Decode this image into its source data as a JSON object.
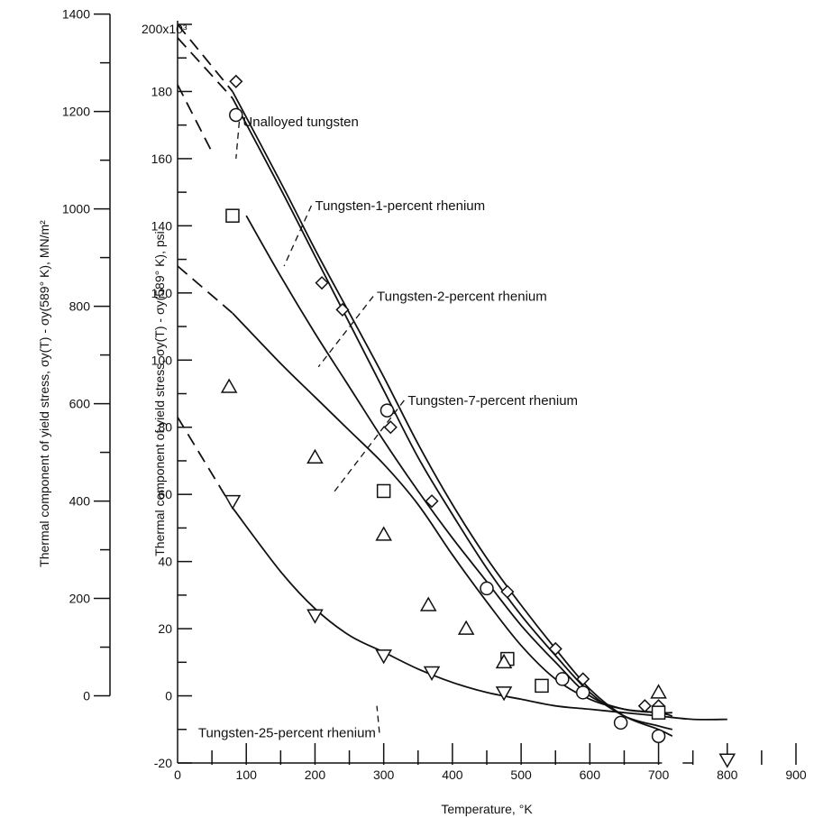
{
  "chart_data": {
    "type": "scatter",
    "title": "",
    "xlabel": "Temperature, °K",
    "ylabel": "Thermal component of yield stress, σy(T) - σy(589° K), psi",
    "ylabel_secondary": "Thermal component of yield stress, σy(T) - σy(589° K), MN/m²",
    "x_ticks": [
      "0",
      "100",
      "200",
      "300",
      "400",
      "500",
      "600",
      "700",
      "800",
      "900"
    ],
    "y_ticks": [
      "-20",
      "0",
      "20",
      "40",
      "60",
      "80",
      "100",
      "120",
      "140",
      "160",
      "180",
      "200x10³"
    ],
    "y2_ticks": [
      "0",
      "200",
      "400",
      "600",
      "800",
      "1000",
      "1200",
      "1400"
    ],
    "xlim": [
      0,
      900
    ],
    "ylim": [
      -20,
      200
    ],
    "y_multiplier": "x10³",
    "grid": false,
    "series": [
      {
        "name": "Unalloyed tungsten",
        "marker": "diamond",
        "label_xy": [
          95,
          171
        ],
        "leader_to": [
          85,
          160
        ],
        "points": [
          [
            85,
            183
          ],
          [
            210,
            123
          ],
          [
            240,
            115
          ],
          [
            310,
            80
          ],
          [
            370,
            58
          ],
          [
            480,
            31
          ],
          [
            550,
            14
          ],
          [
            590,
            5
          ],
          [
            680,
            -3
          ],
          [
            700,
            -3
          ]
        ],
        "curve": [
          [
            0,
            200
          ],
          [
            80,
            180
          ],
          [
            150,
            153
          ],
          [
            200,
            133
          ],
          [
            250,
            114
          ],
          [
            300,
            95
          ],
          [
            350,
            75
          ],
          [
            400,
            57
          ],
          [
            450,
            41
          ],
          [
            500,
            27
          ],
          [
            550,
            14
          ],
          [
            600,
            2
          ],
          [
            650,
            -6
          ],
          [
            700,
            -10
          ],
          [
            720,
            -12
          ]
        ],
        "curve_dashed_to_x": 80
      },
      {
        "name": "Tungsten-1-percent rhenium",
        "marker": "circle",
        "label_xy": [
          200,
          146
        ],
        "leader_to": [
          155,
          128
        ],
        "points": [
          [
            85,
            173
          ],
          [
            305,
            85
          ],
          [
            450,
            32
          ],
          [
            560,
            5
          ],
          [
            590,
            1
          ],
          [
            645,
            -8
          ],
          [
            700,
            -12
          ]
        ],
        "curve": [
          [
            0,
            196
          ],
          [
            80,
            178
          ],
          [
            150,
            151
          ],
          [
            200,
            131
          ],
          [
            250,
            111
          ],
          [
            300,
            91
          ],
          [
            350,
            71
          ],
          [
            400,
            54
          ],
          [
            450,
            38
          ],
          [
            500,
            24
          ],
          [
            550,
            12
          ],
          [
            600,
            1
          ],
          [
            650,
            -6
          ],
          [
            700,
            -9
          ],
          [
            720,
            -10
          ]
        ],
        "curve_dashed_to_x": 80
      },
      {
        "name": "Tungsten-2-percent rhenium",
        "marker": "square",
        "label_xy": [
          290,
          119
        ],
        "leader_to": [
          205,
          98
        ],
        "points": [
          [
            80,
            143
          ],
          [
            300,
            61
          ],
          [
            480,
            11
          ],
          [
            530,
            3
          ],
          [
            700,
            -5
          ]
        ],
        "curve": [
          [
            0,
            182
          ],
          [
            50,
            162
          ],
          [
            100,
            143
          ],
          [
            150,
            125
          ],
          [
            200,
            108
          ],
          [
            250,
            92
          ],
          [
            300,
            76
          ],
          [
            350,
            61
          ],
          [
            400,
            47
          ],
          [
            450,
            34
          ],
          [
            500,
            21
          ],
          [
            550,
            10
          ],
          [
            600,
            0
          ],
          [
            650,
            -4
          ],
          [
            700,
            -5
          ],
          [
            720,
            -5
          ]
        ],
        "curve_dashed_to_x": 80
      },
      {
        "name": "Tungsten-7-percent rhenium",
        "marker": "triangle-up",
        "label_xy": [
          335,
          88
        ],
        "leader_to": [
          225,
          60
        ],
        "points": [
          [
            75,
            92
          ],
          [
            200,
            71
          ],
          [
            300,
            48
          ],
          [
            365,
            27
          ],
          [
            420,
            20
          ],
          [
            475,
            10
          ],
          [
            700,
            1
          ]
        ],
        "curve": [
          [
            0,
            128
          ],
          [
            80,
            114
          ],
          [
            150,
            99
          ],
          [
            200,
            89
          ],
          [
            250,
            79
          ],
          [
            300,
            69
          ],
          [
            350,
            57
          ],
          [
            400,
            42
          ],
          [
            450,
            28
          ],
          [
            500,
            15
          ],
          [
            550,
            5
          ],
          [
            600,
            -1
          ],
          [
            650,
            -4
          ],
          [
            700,
            -5
          ],
          [
            720,
            -6
          ]
        ],
        "curve_dashed_to_x": 80
      },
      {
        "name": "Tungsten-25-percent rhenium",
        "marker": "triangle-down",
        "label_xy": [
          30,
          -11
        ],
        "leader_to": [
          290,
          -3
        ],
        "points": [
          [
            80,
            58
          ],
          [
            200,
            24
          ],
          [
            300,
            12
          ],
          [
            370,
            7
          ],
          [
            475,
            1
          ],
          [
            800,
            -19
          ]
        ],
        "curve": [
          [
            0,
            83
          ],
          [
            80,
            56
          ],
          [
            150,
            37
          ],
          [
            200,
            26
          ],
          [
            250,
            18
          ],
          [
            300,
            13
          ],
          [
            350,
            8
          ],
          [
            400,
            4
          ],
          [
            450,
            1
          ],
          [
            500,
            -1
          ],
          [
            550,
            -3
          ],
          [
            600,
            -4
          ],
          [
            650,
            -5
          ],
          [
            700,
            -6
          ],
          [
            750,
            -7
          ],
          [
            800,
            -7
          ]
        ],
        "curve_dashed_to_x": 80
      }
    ]
  }
}
